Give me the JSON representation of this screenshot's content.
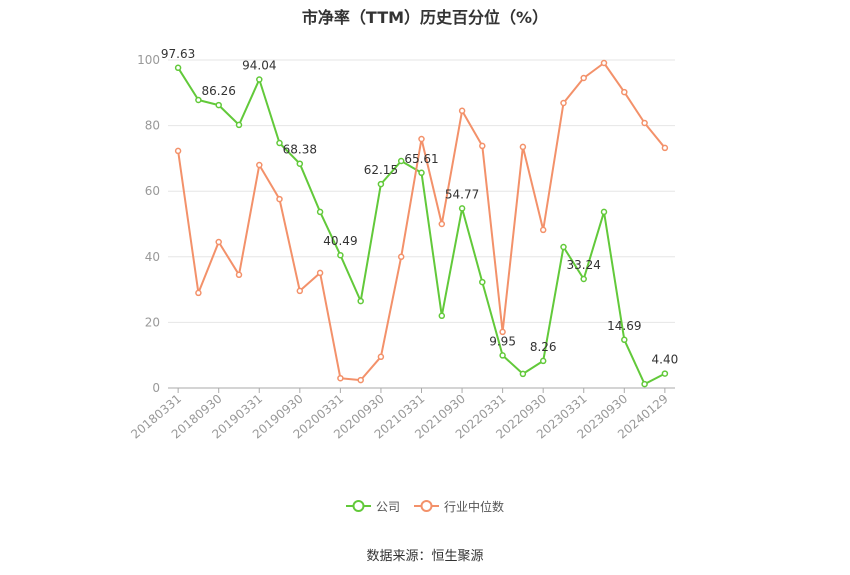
{
  "chart_data": {
    "type": "line",
    "title": "市净率（TTM）历史百分位（%）",
    "xlabel": "",
    "ylabel": "",
    "ylim": [
      0,
      100
    ],
    "yticks": [
      0,
      20,
      40,
      60,
      80,
      100
    ],
    "grid": true,
    "legend_position": "bottom-center",
    "categories": [
      "20180331",
      "",
      "20180930",
      "",
      "20190331",
      "",
      "20190930",
      "",
      "20200331",
      "",
      "20200930",
      "",
      "20210331",
      "",
      "20210930",
      "",
      "20220331",
      "",
      "20220930",
      "",
      "20230331",
      "",
      "20230930",
      "",
      "20240129"
    ],
    "series": [
      {
        "name": "公司",
        "color": "#62c93a",
        "values": [
          97.63,
          87.8,
          86.26,
          80.2,
          94.04,
          74.7,
          68.38,
          53.7,
          40.49,
          26.5,
          62.15,
          69.2,
          65.61,
          22.0,
          54.77,
          32.3,
          9.95,
          4.3,
          8.26,
          43.0,
          33.24,
          53.7,
          14.69,
          1.2,
          4.4
        ],
        "data_labels": [
          "97.63",
          null,
          "86.26",
          null,
          "94.04",
          null,
          "68.38",
          null,
          "40.49",
          null,
          "62.15",
          null,
          "65.61",
          null,
          "54.77",
          null,
          "9.95",
          null,
          "8.26",
          null,
          "33.24",
          null,
          "14.69",
          null,
          "4.40"
        ]
      },
      {
        "name": "行业中位数",
        "color": "#f3916a",
        "values": [
          72.3,
          29.0,
          44.5,
          34.5,
          68.0,
          57.6,
          29.6,
          35.1,
          3.0,
          2.4,
          9.5,
          40.0,
          75.9,
          50.0,
          84.5,
          73.8,
          17.1,
          73.5,
          48.2,
          86.9,
          94.5,
          99.1,
          90.2,
          80.8,
          73.2
        ]
      }
    ]
  },
  "source": "数据来源：恒生聚源"
}
